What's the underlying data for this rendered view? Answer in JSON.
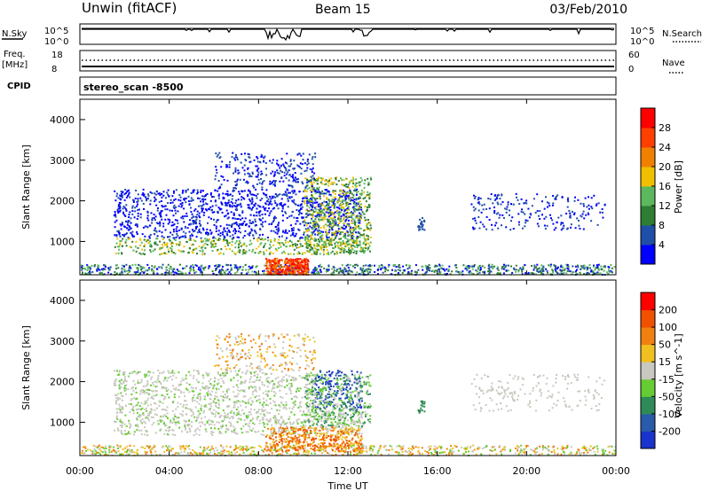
{
  "header": {
    "station": "Unwin (fitACF)",
    "beam": "Beam 15",
    "date": "03/Feb/2010"
  },
  "side_labels": {
    "nsky": "N.Sky",
    "freq": "Freq.",
    "freq_unit": "[MHz]",
    "cpid": "CPID",
    "nsearch": "N.Search",
    "nave": "Nave",
    "cpid_value": "stereo_scan -8500"
  },
  "colors": {
    "power": [
      "#0000ff",
      "#1f4fa8",
      "#2e7d32",
      "#5cb85c",
      "#f0c000",
      "#f08000",
      "#ff4000",
      "#ff0000"
    ],
    "velocity": [
      "#1a33cc",
      "#2a5aaa",
      "#2e8b57",
      "#66cc33",
      "#c8c8c0",
      "#f0c020",
      "#f08010",
      "#f05000",
      "#ff0000"
    ]
  },
  "chart_data": [
    {
      "type": "line",
      "name": "noise-panel",
      "ylabel_left": "N.Sky",
      "ylabel_right": "N.Search",
      "yticks_left": [
        "10^5",
        "10^0"
      ],
      "yticks_right": [
        "10^5",
        "10^0"
      ]
    },
    {
      "type": "scatter",
      "name": "freq-panel",
      "ylabel_left": "Freq. [MHz]",
      "ylabel_right": "Nave",
      "yticks_left": [
        "18",
        "8"
      ],
      "yticks_right": [
        "60",
        "0"
      ]
    },
    {
      "type": "heatmap",
      "name": "power-panel",
      "ylabel": "Slant Range [km]",
      "yticks": [
        "4000",
        "3000",
        "2000",
        "1000"
      ],
      "ylim": [
        180,
        4500
      ],
      "colorbar_label": "Power [dB]",
      "colorbar_ticks": [
        "28",
        "24",
        "20",
        "16",
        "12",
        "8",
        "4"
      ]
    },
    {
      "type": "heatmap",
      "name": "velocity-panel",
      "ylabel": "Slant Range [km]",
      "yticks": [
        "4000",
        "3000",
        "2000",
        "1000"
      ],
      "ylim": [
        180,
        4500
      ],
      "colorbar_label": "Velocity [m s^-1]",
      "colorbar_ticks": [
        "200",
        "100",
        "50",
        "15",
        "-15",
        "-50",
        "-100",
        "-200"
      ]
    }
  ],
  "xaxis": {
    "label": "Time UT",
    "ticks": [
      "00:00",
      "04:00",
      "08:00",
      "12:00",
      "16:00",
      "20:00",
      "00:00"
    ]
  }
}
